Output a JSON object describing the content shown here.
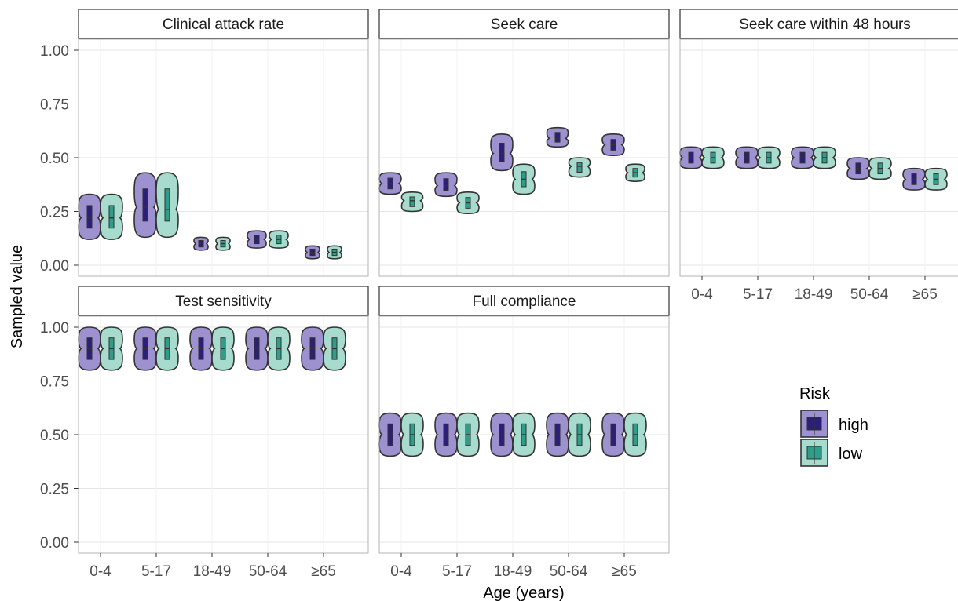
{
  "chart_data": {
    "type": "violin",
    "xlabel": "Age (years)",
    "ylabel": "Sampled value",
    "ylim": [
      0,
      1
    ],
    "y_ticks": [
      "0.00",
      "0.25",
      "0.50",
      "0.75",
      "1.00"
    ],
    "categories": [
      "0-4",
      "5-17",
      "18-49",
      "50-64",
      "≥65"
    ],
    "grid": true,
    "legend": {
      "title": "Risk",
      "position": "right",
      "items": [
        {
          "name": "high",
          "fill": "#9d91cf",
          "median_fill": "#2b1f7a"
        },
        {
          "name": "low",
          "fill": "#a6dbcd",
          "median_fill": "#2e9e8a"
        }
      ]
    },
    "panels": [
      {
        "title": "Clinical attack rate",
        "series": [
          {
            "name": "high",
            "median": [
              0.22,
              0.27,
              0.1,
              0.12,
              0.06
            ],
            "min": [
              0.12,
              0.13,
              0.07,
              0.08,
              0.03
            ],
            "max": [
              0.33,
              0.43,
              0.13,
              0.16,
              0.09
            ]
          },
          {
            "name": "low",
            "median": [
              0.22,
              0.26,
              0.1,
              0.12,
              0.06
            ],
            "min": [
              0.12,
              0.13,
              0.07,
              0.08,
              0.03
            ],
            "max": [
              0.33,
              0.43,
              0.13,
              0.16,
              0.09
            ]
          }
        ]
      },
      {
        "title": "Seek care",
        "series": [
          {
            "name": "high",
            "median": [
              0.38,
              0.37,
              0.52,
              0.59,
              0.56
            ],
            "min": [
              0.33,
              0.32,
              0.44,
              0.55,
              0.51
            ],
            "max": [
              0.43,
              0.43,
              0.61,
              0.64,
              0.61
            ]
          },
          {
            "name": "low",
            "median": [
              0.3,
              0.29,
              0.4,
              0.46,
              0.43
            ],
            "min": [
              0.25,
              0.24,
              0.33,
              0.41,
              0.39
            ],
            "max": [
              0.34,
              0.34,
              0.47,
              0.5,
              0.47
            ]
          }
        ]
      },
      {
        "title": "Seek care within 48 hours",
        "series": [
          {
            "name": "high",
            "median": [
              0.5,
              0.5,
              0.5,
              0.45,
              0.4
            ],
            "min": [
              0.45,
              0.45,
              0.45,
              0.4,
              0.35
            ],
            "max": [
              0.55,
              0.55,
              0.55,
              0.5,
              0.45
            ]
          },
          {
            "name": "low",
            "median": [
              0.5,
              0.5,
              0.5,
              0.45,
              0.4
            ],
            "min": [
              0.45,
              0.45,
              0.45,
              0.4,
              0.35
            ],
            "max": [
              0.55,
              0.55,
              0.55,
              0.5,
              0.45
            ]
          }
        ]
      },
      {
        "title": "Test sensitivity",
        "series": [
          {
            "name": "high",
            "median": [
              0.9,
              0.9,
              0.9,
              0.9,
              0.9
            ],
            "min": [
              0.8,
              0.8,
              0.8,
              0.8,
              0.8
            ],
            "max": [
              1.0,
              1.0,
              1.0,
              1.0,
              1.0
            ]
          },
          {
            "name": "low",
            "median": [
              0.9,
              0.9,
              0.9,
              0.9,
              0.9
            ],
            "min": [
              0.8,
              0.8,
              0.8,
              0.8,
              0.8
            ],
            "max": [
              1.0,
              1.0,
              1.0,
              1.0,
              1.0
            ]
          }
        ]
      },
      {
        "title": "Full compliance",
        "series": [
          {
            "name": "high",
            "median": [
              0.5,
              0.5,
              0.5,
              0.5,
              0.5
            ],
            "min": [
              0.4,
              0.4,
              0.4,
              0.4,
              0.4
            ],
            "max": [
              0.6,
              0.6,
              0.6,
              0.6,
              0.6
            ]
          },
          {
            "name": "low",
            "median": [
              0.5,
              0.5,
              0.5,
              0.5,
              0.5
            ],
            "min": [
              0.4,
              0.4,
              0.4,
              0.4,
              0.4
            ],
            "max": [
              0.6,
              0.6,
              0.6,
              0.6,
              0.6
            ]
          }
        ]
      }
    ]
  }
}
